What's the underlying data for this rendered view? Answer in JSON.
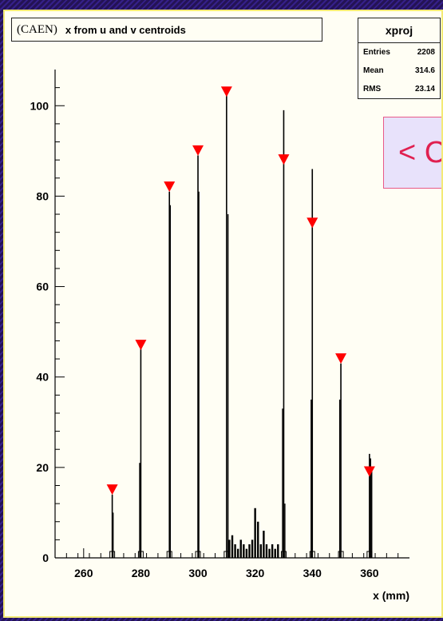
{
  "canvas": {
    "title_prefix": "(CAEN)",
    "title": "x from u and v centroids"
  },
  "stats": {
    "name": "xproj",
    "rows": [
      {
        "label": "Entries",
        "value": "2208"
      },
      {
        "label": "Mean",
        "value": "314.6"
      },
      {
        "label": "RMS",
        "value": "23.14"
      }
    ]
  },
  "overlay": {
    "text": "< C"
  },
  "colors": {
    "background": "#fffef4",
    "border": "#f3ea76",
    "histogram": "#000000",
    "marker": "#ff0000",
    "overlay_text": "#e02050"
  },
  "chart_data": {
    "type": "bar",
    "title": "x from u and v centroids",
    "xlabel": "x (mm)",
    "ylabel": "",
    "xlim": [
      250,
      374
    ],
    "ylim": [
      0,
      108
    ],
    "xticks": [
      260,
      280,
      300,
      320,
      340,
      360
    ],
    "yticks": [
      0,
      20,
      40,
      60,
      80,
      100
    ],
    "grid": false,
    "spikes": [
      {
        "x": 270,
        "height": 14,
        "sub": [
          {
            "x": 270.3,
            "height": 10
          }
        ]
      },
      {
        "x": 280,
        "height": 47,
        "sub": [
          {
            "x": 279.6,
            "height": 21
          }
        ]
      },
      {
        "x": 290,
        "height": 81,
        "sub": [
          {
            "x": 290.3,
            "height": 78
          }
        ]
      },
      {
        "x": 300,
        "height": 89,
        "sub": [
          {
            "x": 300.3,
            "height": 81
          }
        ]
      },
      {
        "x": 310,
        "height": 104,
        "sub": [
          {
            "x": 310.5,
            "height": 76
          }
        ]
      },
      {
        "x": 330,
        "height": 99,
        "sub": [
          {
            "x": 329.6,
            "height": 33
          },
          {
            "x": 330.4,
            "height": 12
          }
        ]
      },
      {
        "x": 340,
        "height": 86,
        "sub": [
          {
            "x": 339.6,
            "height": 35
          }
        ]
      },
      {
        "x": 350,
        "height": 43,
        "sub": [
          {
            "x": 349.6,
            "height": 35
          }
        ]
      },
      {
        "x": 360,
        "height": 23,
        "sub": [
          {
            "x": 360.4,
            "height": 22
          },
          {
            "x": 360.8,
            "height": 20
          }
        ]
      }
    ],
    "background_bins": [
      {
        "x": 311,
        "height": 4
      },
      {
        "x": 312,
        "height": 5
      },
      {
        "x": 313,
        "height": 3
      },
      {
        "x": 314,
        "height": 2
      },
      {
        "x": 315,
        "height": 4
      },
      {
        "x": 316,
        "height": 3
      },
      {
        "x": 317,
        "height": 2
      },
      {
        "x": 318,
        "height": 3
      },
      {
        "x": 319,
        "height": 4
      },
      {
        "x": 320,
        "height": 11
      },
      {
        "x": 321,
        "height": 8
      },
      {
        "x": 322,
        "height": 3
      },
      {
        "x": 323,
        "height": 6
      },
      {
        "x": 324,
        "height": 3
      },
      {
        "x": 325,
        "height": 2
      },
      {
        "x": 326,
        "height": 3
      },
      {
        "x": 327,
        "height": 2
      },
      {
        "x": 328,
        "height": 3
      }
    ],
    "markers": [
      {
        "x": 270,
        "y": 15
      },
      {
        "x": 280,
        "y": 47
      },
      {
        "x": 290,
        "y": 82
      },
      {
        "x": 300,
        "y": 90
      },
      {
        "x": 310,
        "y": 103
      },
      {
        "x": 330,
        "y": 88
      },
      {
        "x": 340,
        "y": 74
      },
      {
        "x": 350,
        "y": 44
      },
      {
        "x": 360,
        "y": 19
      }
    ]
  }
}
